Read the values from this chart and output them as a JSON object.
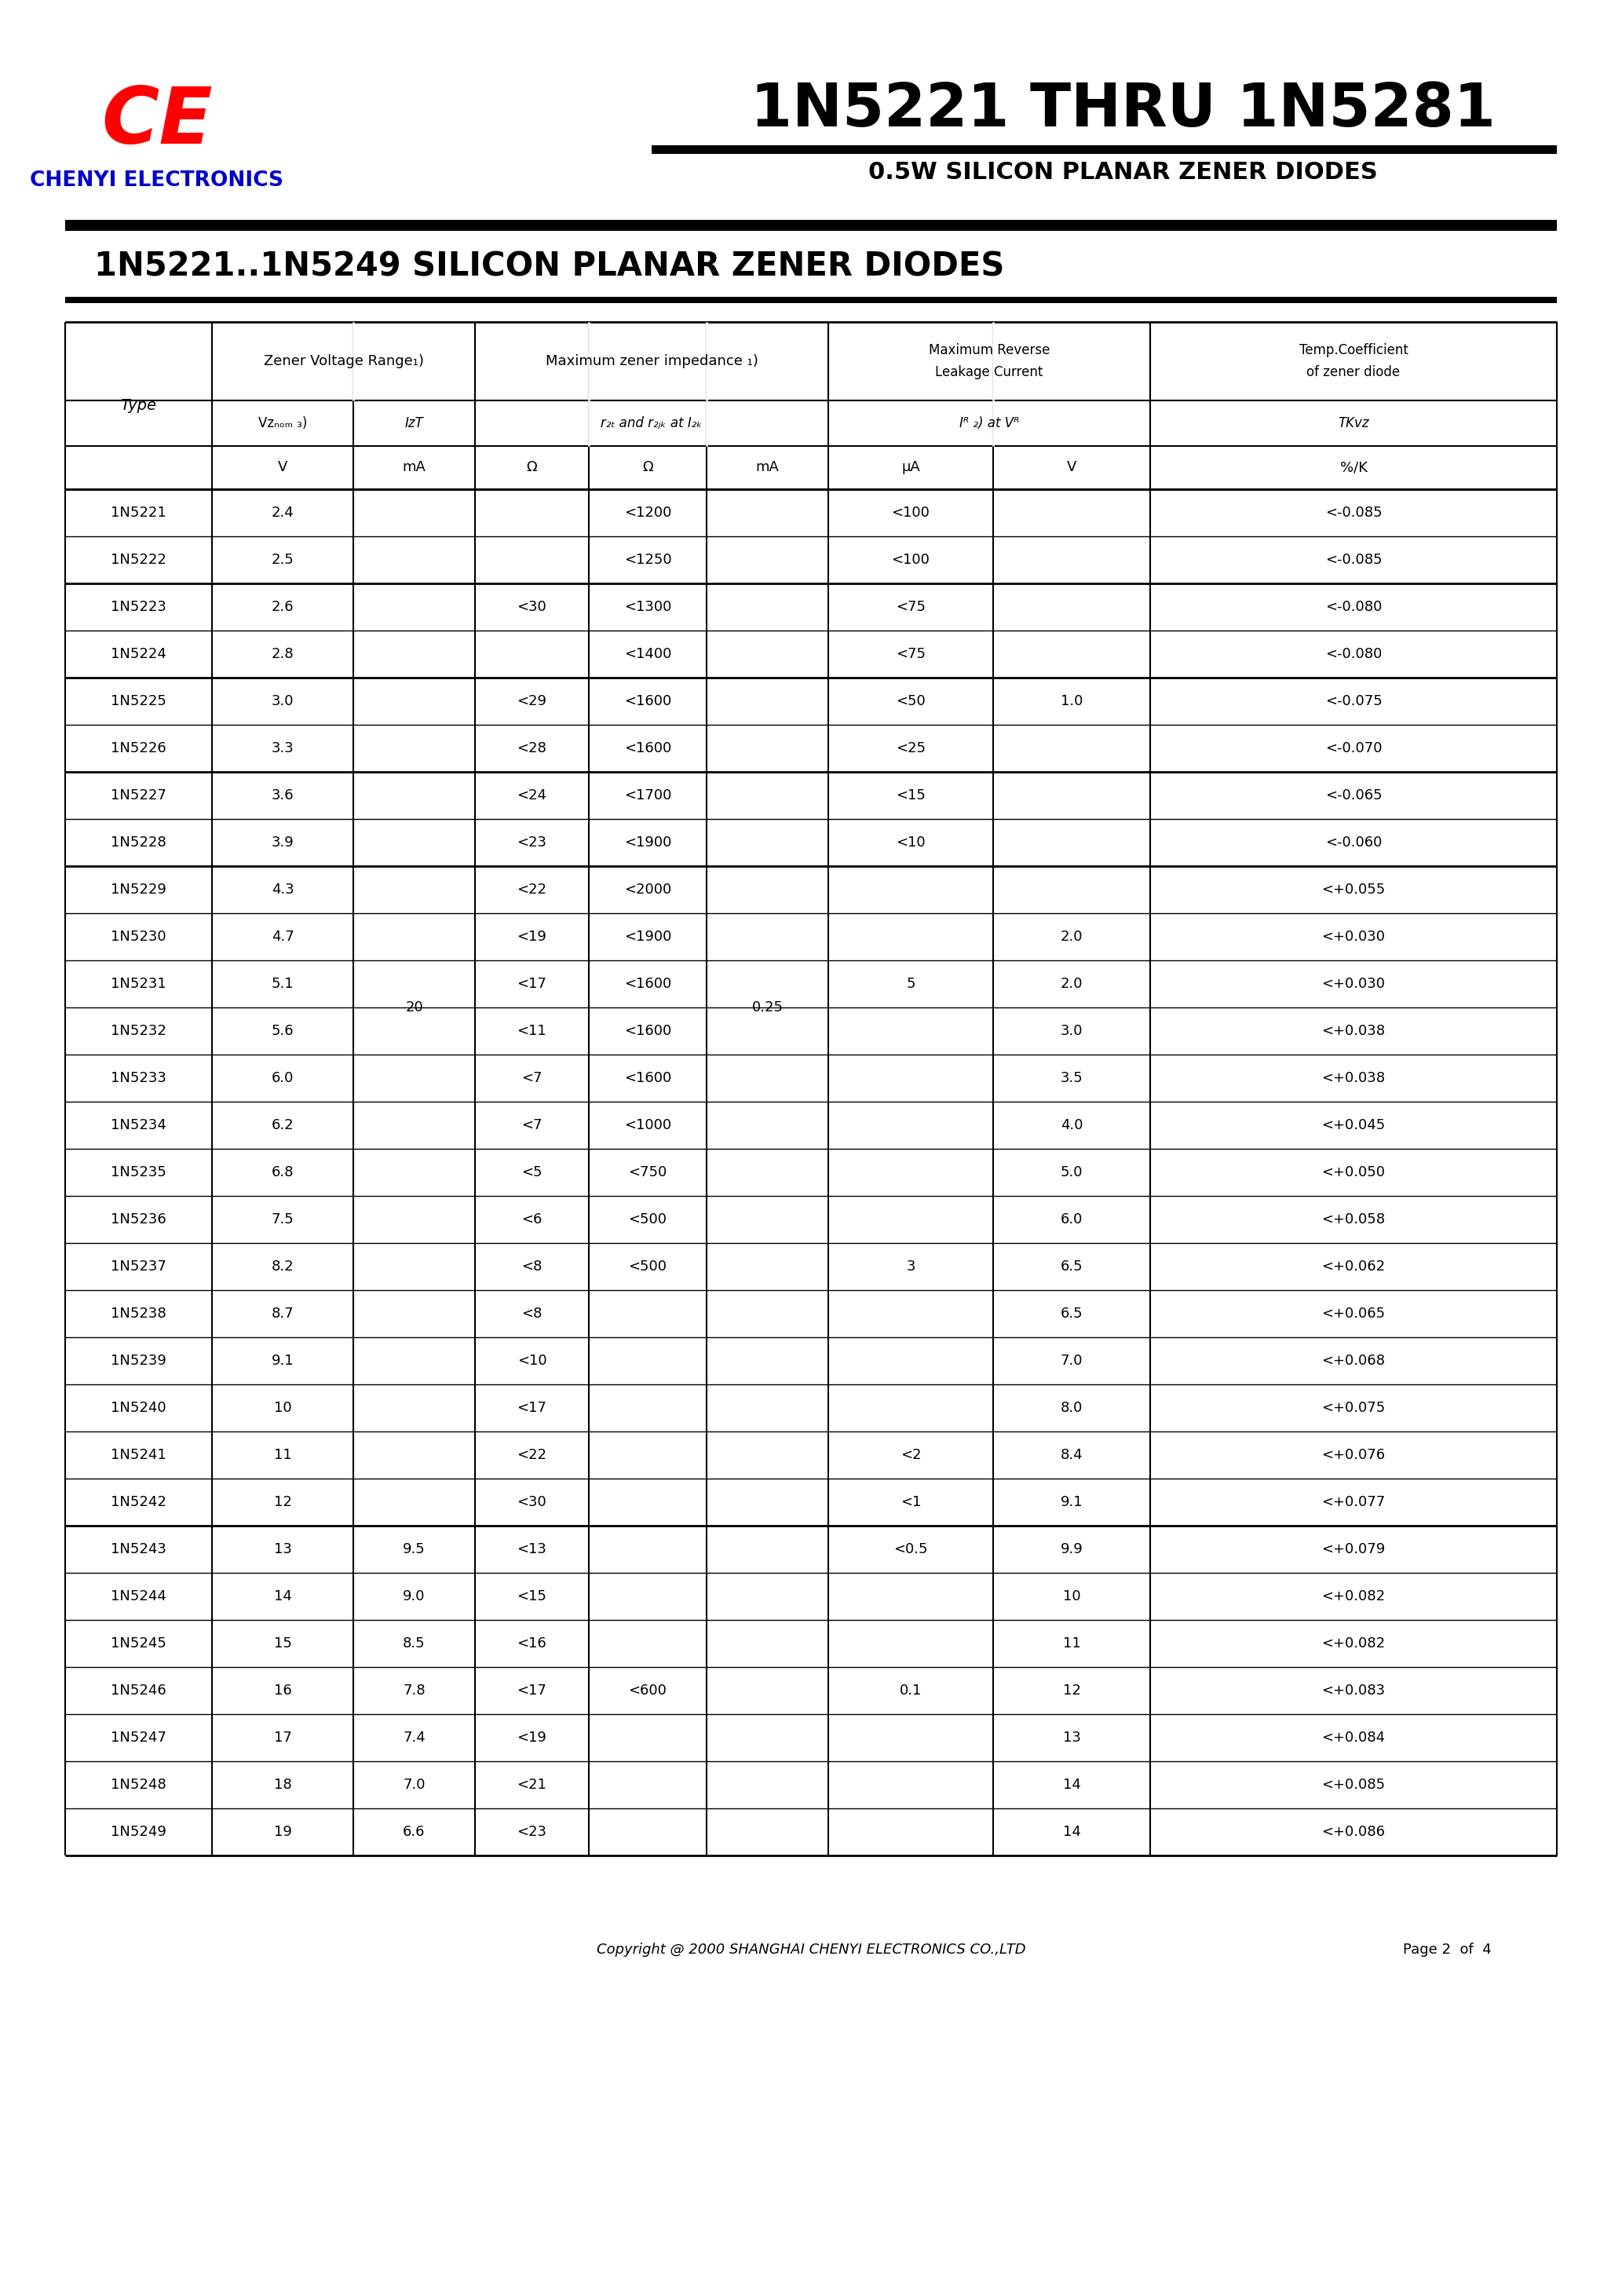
{
  "title_main": "1N5221 THRU 1N5281",
  "subtitle_main": "0.5W SILICON PLANAR ZENER DIODES",
  "company_name": "CHENYI ELECTRONICS",
  "section_title": "1N5221..1N5249 SILICON PLANAR ZENER DIODES",
  "copyright": "Copyright @ 2000 SHANGHAI CHENYI ELECTRONICS CO.,LTD",
  "page_info": "Page 2  of  4",
  "background_color": "#ffffff",
  "ce_color": "#ff0000",
  "company_color": "#0000cc",
  "rows": [
    [
      "1N5221",
      "2.4",
      "",
      "",
      "<1200",
      "",
      "<100",
      "",
      "<-0.085"
    ],
    [
      "1N5222",
      "2.5",
      "",
      "",
      "<1250",
      "",
      "<100",
      "",
      "<-0.085"
    ],
    [
      "1N5223",
      "2.6",
      "",
      "<30",
      "<1300",
      "",
      "<75",
      "",
      "<-0.080"
    ],
    [
      "1N5224",
      "2.8",
      "",
      "",
      "<1400",
      "",
      "<75",
      "",
      "<-0.080"
    ],
    [
      "1N5225",
      "3.0",
      "",
      "<29",
      "<1600",
      "",
      "<50",
      "1.0",
      "<-0.075"
    ],
    [
      "1N5226",
      "3.3",
      "",
      "<28",
      "<1600",
      "",
      "<25",
      "",
      "<-0.070"
    ],
    [
      "1N5227",
      "3.6",
      "",
      "<24",
      "<1700",
      "",
      "<15",
      "",
      "<-0.065"
    ],
    [
      "1N5228",
      "3.9",
      "",
      "<23",
      "<1900",
      "",
      "<10",
      "",
      "<-0.060"
    ],
    [
      "1N5229",
      "4.3",
      "",
      "<22",
      "<2000",
      "",
      "",
      "",
      "<+0.055"
    ],
    [
      "1N5230",
      "4.7",
      "",
      "<19",
      "<1900",
      "",
      "",
      "2.0",
      "<+0.030"
    ],
    [
      "1N5231",
      "5.1",
      "",
      "<17",
      "<1600",
      "",
      "5",
      "2.0",
      "<+0.030"
    ],
    [
      "1N5232",
      "5.6",
      "",
      "<11",
      "<1600",
      "",
      "",
      "3.0",
      "<+0.038"
    ],
    [
      "1N5233",
      "6.0",
      "",
      "<7",
      "<1600",
      "",
      "",
      "3.5",
      "<+0.038"
    ],
    [
      "1N5234",
      "6.2",
      "",
      "<7",
      "<1000",
      "",
      "",
      "4.0",
      "<+0.045"
    ],
    [
      "1N5235",
      "6.8",
      "",
      "<5",
      "<750",
      "",
      "",
      "5.0",
      "<+0.050"
    ],
    [
      "1N5236",
      "7.5",
      "",
      "<6",
      "<500",
      "",
      "",
      "6.0",
      "<+0.058"
    ],
    [
      "1N5237",
      "8.2",
      "",
      "<8",
      "<500",
      "",
      "3",
      "6.5",
      "<+0.062"
    ],
    [
      "1N5238",
      "8.7",
      "",
      "<8",
      "",
      "",
      "",
      "6.5",
      "<+0.065"
    ],
    [
      "1N5239",
      "9.1",
      "",
      "<10",
      "",
      "",
      "",
      "7.0",
      "<+0.068"
    ],
    [
      "1N5240",
      "10",
      "",
      "<17",
      "",
      "",
      "",
      "8.0",
      "<+0.075"
    ],
    [
      "1N5241",
      "11",
      "",
      "<22",
      "",
      "",
      "<2",
      "8.4",
      "<+0.076"
    ],
    [
      "1N5242",
      "12",
      "",
      "<30",
      "",
      "",
      "<1",
      "9.1",
      "<+0.077"
    ],
    [
      "1N5243",
      "13",
      "9.5",
      "<13",
      "",
      "",
      "<0.5",
      "9.9",
      "<+0.079"
    ],
    [
      "1N5244",
      "14",
      "9.0",
      "<15",
      "",
      "",
      "",
      "10",
      "<+0.082"
    ],
    [
      "1N5245",
      "15",
      "8.5",
      "<16",
      "",
      "",
      "",
      "11",
      "<+0.082"
    ],
    [
      "1N5246",
      "16",
      "7.8",
      "<17",
      "",
      "",
      "0.1",
      "12",
      "<+0.083"
    ],
    [
      "1N5247",
      "17",
      "7.4",
      "<19",
      "",
      "",
      "",
      "13",
      "<+0.084"
    ],
    [
      "1N5248",
      "18",
      "7.0",
      "<21",
      "",
      "",
      "",
      "14",
      "<+0.085"
    ],
    [
      "1N5249",
      "19",
      "6.6",
      "<23",
      "",
      "",
      "",
      "14",
      "<+0.086"
    ]
  ]
}
